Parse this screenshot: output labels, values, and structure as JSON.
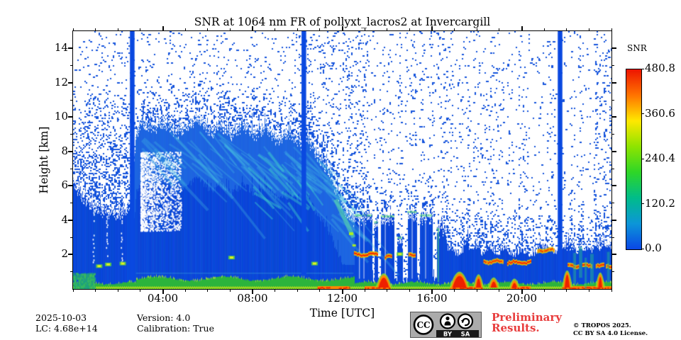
{
  "header": {
    "title": "SNR at 1064 nm FR of pollyxt_lacros2 at Invercargill"
  },
  "footer": {
    "date": "2025-10-03",
    "lidar_constant": "LC: 4.68e+14",
    "version": "Version: 4.0",
    "calibration": "Calibration: True",
    "preliminary_line1": "Preliminary",
    "preliminary_line2": "Results.",
    "preliminary_color": "#e83c3c",
    "copyright_line1": "© TROPOS 2025.",
    "copyright_line2": "CC BY SA 4.0 License.",
    "cc_badge": {
      "cc": "CC",
      "by": "BY",
      "sa": "SA"
    }
  },
  "chart_data": {
    "type": "heatmap",
    "title": "SNR at 1064 nm FR of pollyxt_lacros2 at Invercargill",
    "xlabel": "Time [UTC]",
    "ylabel": "Height [km]",
    "x_range_hours": [
      0,
      24
    ],
    "x_major_ticks": [
      {
        "hour": 4,
        "label": "04:00"
      },
      {
        "hour": 8,
        "label": "08:00"
      },
      {
        "hour": 12,
        "label": "12:00"
      },
      {
        "hour": 16,
        "label": "16:00"
      },
      {
        "hour": 20,
        "label": "20:00"
      }
    ],
    "x_minor_step_hours": 1,
    "y_range_km": [
      0,
      15
    ],
    "y_major_ticks_km": [
      2,
      4,
      6,
      8,
      10,
      12,
      14
    ],
    "y_minor_step_km": 1,
    "grid": false,
    "legend_position": "right",
    "colorbar": {
      "label": "SNR",
      "min": 0.0,
      "max": 480.8,
      "tick_labels": [
        "480.8",
        "360.6",
        "240.4",
        "120.2",
        "0.0"
      ],
      "gradient_top_to_bottom": [
        "#ed1400",
        "#ff7300",
        "#ffe800",
        "#8ee400",
        "#2ed627",
        "#00bc8a",
        "#0c96d8",
        "#0a46e6"
      ]
    },
    "colors": {
      "signal_base": "#0847d8",
      "signal_light": "rgba(45,125,232,0.55)",
      "streak_cyan": "rgba(70,190,225,0.30)",
      "streak_teal": "rgba(60,205,205,0.45)",
      "noise_blue": "#1453dc",
      "gap_blue": "#0a49e0",
      "band_green": "#2cb43c",
      "band_yellow": "#9ad422",
      "warm_red": "#ee2000",
      "warm_orange": "#ff8800",
      "warm_yellow": "#dde000"
    },
    "data_gaps_hours": [
      2.63,
      10.28,
      21.7
    ],
    "echo_top_km": [
      [
        0,
        6.3
      ],
      [
        0.4,
        5.6
      ],
      [
        0.9,
        4.9
      ],
      [
        1.4,
        4.7
      ],
      [
        1.9,
        4.5
      ],
      [
        2.3,
        4.8
      ],
      [
        2.6,
        5.2
      ],
      [
        2.8,
        9.2
      ],
      [
        3.05,
        9.9
      ],
      [
        3.6,
        9.6
      ],
      [
        4.1,
        9.9
      ],
      [
        4.6,
        9.3
      ],
      [
        5.1,
        9.7
      ],
      [
        5.6,
        10.1
      ],
      [
        6.1,
        9.3
      ],
      [
        6.6,
        9.7
      ],
      [
        7.1,
        9.2
      ],
      [
        7.6,
        9.7
      ],
      [
        8.1,
        9.1
      ],
      [
        8.6,
        9.5
      ],
      [
        9.1,
        8.9
      ],
      [
        9.6,
        9.2
      ],
      [
        10.1,
        8.7
      ],
      [
        10.45,
        8.9
      ],
      [
        10.8,
        8.1
      ],
      [
        11.2,
        7.4
      ],
      [
        11.5,
        6.7
      ],
      [
        11.8,
        5.6
      ],
      [
        12.1,
        4.9
      ],
      [
        12.35,
        4.4
      ],
      [
        12.55,
        4.1
      ]
    ],
    "cloud_columns_hours_top_km": [
      [
        12.55,
        13.32,
        4.3
      ],
      [
        13.42,
        13.58,
        3.9
      ],
      [
        13.72,
        14.32,
        4.25
      ],
      [
        14.45,
        14.68,
        3.0
      ],
      [
        14.9,
        15.33,
        4.5
      ],
      [
        15.45,
        16.0,
        4.3
      ],
      [
        16.2,
        16.32,
        3.5
      ]
    ],
    "low_top_km": [
      [
        16.3,
        3.6
      ],
      [
        16.55,
        3.7
      ],
      [
        16.7,
        2.4
      ],
      [
        17.0,
        2.2
      ],
      [
        17.3,
        2.0
      ],
      [
        17.55,
        3.35
      ],
      [
        17.75,
        2.1
      ],
      [
        18.0,
        2.9
      ],
      [
        18.2,
        2.1
      ],
      [
        18.6,
        2.4
      ],
      [
        18.9,
        2.0
      ],
      [
        19.2,
        2.5
      ],
      [
        19.6,
        2.0
      ],
      [
        20.0,
        2.3
      ],
      [
        20.4,
        1.9
      ],
      [
        20.8,
        2.5
      ],
      [
        21.1,
        2.4
      ],
      [
        21.5,
        2.2
      ],
      [
        21.9,
        2.6
      ],
      [
        22.1,
        2.9
      ],
      [
        22.4,
        2.2
      ],
      [
        22.8,
        2.4
      ],
      [
        23.1,
        2.3
      ],
      [
        23.35,
        2.9
      ],
      [
        23.7,
        2.5
      ],
      [
        24,
        2.7
      ]
    ],
    "warm_features": {
      "cloud_base_streaks": [
        {
          "t": [
            12.52,
            13.55
          ],
          "h": 2.05
        },
        {
          "t": [
            13.9,
            14.18
          ],
          "h": 1.9
        },
        {
          "t": [
            14.95,
            15.25
          ],
          "h": 2.0
        },
        {
          "t": [
            18.3,
            19.15
          ],
          "h": 1.62
        },
        {
          "t": [
            19.35,
            20.4
          ],
          "h": 1.58
        },
        {
          "t": [
            20.7,
            21.45
          ],
          "h": 2.3
        },
        {
          "t": [
            22.05,
            22.5
          ],
          "h": 1.4
        },
        {
          "t": [
            22.7,
            23.1
          ],
          "h": 1.38
        },
        {
          "t": [
            23.3,
            23.62
          ],
          "h": 1.42
        },
        {
          "t": [
            23.75,
            24
          ],
          "h": 1.35
        }
      ],
      "strong_low_returns": [
        {
          "t": [
            13.55,
            14.15
          ],
          "top": 1.4
        },
        {
          "t": [
            16.85,
            17.6
          ],
          "top": 1.6
        },
        {
          "t": [
            17.9,
            18.25
          ],
          "top": 1.3
        },
        {
          "t": [
            18.55,
            18.95
          ],
          "top": 0.95
        },
        {
          "t": [
            19.5,
            19.85
          ],
          "top": 0.8
        },
        {
          "t": [
            21.85,
            22.2
          ],
          "top": 1.75
        },
        {
          "t": [
            23.35,
            23.65
          ],
          "top": 1.5
        }
      ],
      "bright_spots": [
        {
          "t": 1.15,
          "h": 1.35
        },
        {
          "t": 1.55,
          "h": 1.45
        },
        {
          "t": 2.2,
          "h": 1.5
        },
        {
          "t": 7.05,
          "h": 1.85
        },
        {
          "t": 10.75,
          "h": 1.5
        },
        {
          "t": 14.55,
          "h": 2.05
        }
      ],
      "hot_bottom_segments": [
        [
          10.9,
          12.3
        ],
        [
          13.0,
          14.15
        ],
        [
          16.8,
          18.25
        ],
        [
          19.5,
          20.4
        ],
        [
          21.8,
          24.0
        ]
      ]
    }
  }
}
